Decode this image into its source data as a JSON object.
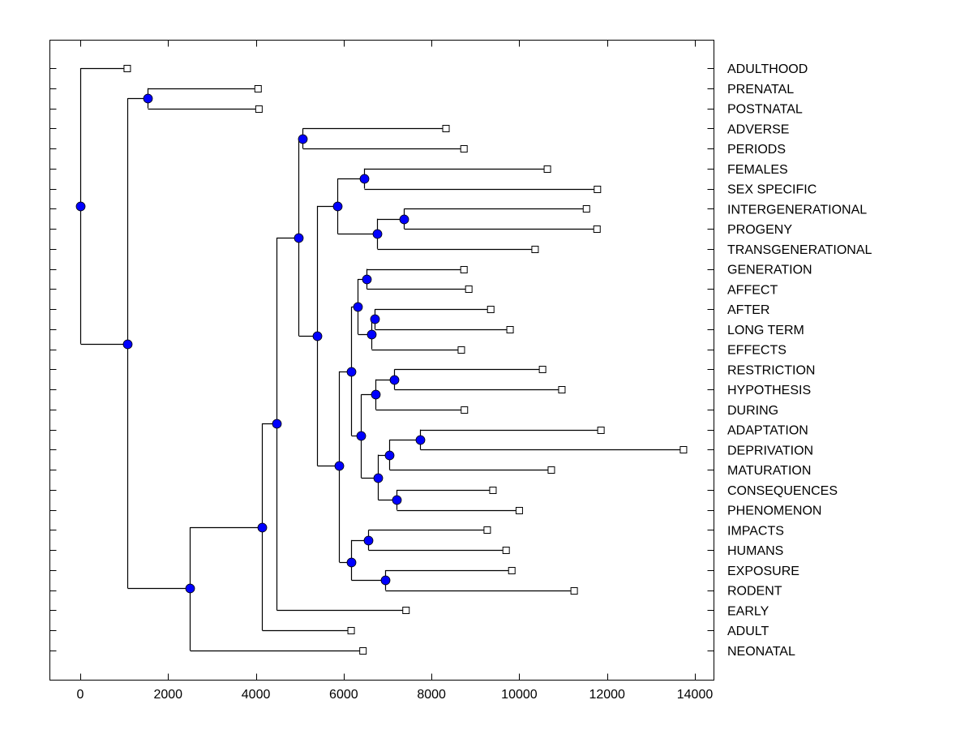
{
  "chart_data": {
    "type": "dendrogram",
    "title": "",
    "xlabel": "",
    "ylabel": "",
    "xlim": [
      -700,
      14400
    ],
    "x_ticks": [
      0,
      2000,
      4000,
      6000,
      8000,
      10000,
      12000,
      14000
    ],
    "x_tick_labels": [
      "0",
      "2000",
      "4000",
      "6000",
      "8000",
      "10000",
      "12000",
      "14000"
    ],
    "grid": false,
    "leaf_label_position": "right",
    "colors": {
      "node_fill": "#0000ff",
      "leaf_fill": "#ffffff",
      "line": "#000000"
    },
    "leaves": [
      {
        "id": "L0",
        "label": "ADULTHOOD",
        "value": 1070
      },
      {
        "id": "L1",
        "label": "PRENATAL",
        "value": 4050
      },
      {
        "id": "L2",
        "label": "POSTNATAL",
        "value": 4070
      },
      {
        "id": "L3",
        "label": "ADVERSE",
        "value": 8330
      },
      {
        "id": "L4",
        "label": "PERIODS",
        "value": 8740
      },
      {
        "id": "L5",
        "label": "FEMALES",
        "value": 10640
      },
      {
        "id": "L6",
        "label": "SEX SPECIFIC",
        "value": 11780
      },
      {
        "id": "L7",
        "label": "INTERGENERATIONAL",
        "value": 11530
      },
      {
        "id": "L8",
        "label": "PROGENY",
        "value": 11770
      },
      {
        "id": "L9",
        "label": "TRANSGENERATIONAL",
        "value": 10360
      },
      {
        "id": "L10",
        "label": "GENERATION",
        "value": 8740
      },
      {
        "id": "L11",
        "label": "AFFECT",
        "value": 8850
      },
      {
        "id": "L12",
        "label": "AFTER",
        "value": 9350
      },
      {
        "id": "L13",
        "label": "LONG TERM",
        "value": 9790
      },
      {
        "id": "L14",
        "label": "EFFECTS",
        "value": 8680
      },
      {
        "id": "L15",
        "label": "RESTRICTION",
        "value": 10530
      },
      {
        "id": "L16",
        "label": "HYPOTHESIS",
        "value": 10970
      },
      {
        "id": "L17",
        "label": "DURING",
        "value": 8750
      },
      {
        "id": "L18",
        "label": "ADAPTATION",
        "value": 11860
      },
      {
        "id": "L19",
        "label": "DEPRIVATION",
        "value": 13740
      },
      {
        "id": "L20",
        "label": "MATURATION",
        "value": 10730
      },
      {
        "id": "L21",
        "label": "CONSEQUENCES",
        "value": 9400
      },
      {
        "id": "L22",
        "label": "PHENOMENON",
        "value": 10000
      },
      {
        "id": "L23",
        "label": "IMPACTS",
        "value": 9270
      },
      {
        "id": "L24",
        "label": "HUMANS",
        "value": 9700
      },
      {
        "id": "L25",
        "label": "EXPOSURE",
        "value": 9830
      },
      {
        "id": "L26",
        "label": "RODENT",
        "value": 11250
      },
      {
        "id": "L27",
        "label": "EARLY",
        "value": 7420
      },
      {
        "id": "L28",
        "label": "ADULT",
        "value": 6170
      },
      {
        "id": "L29",
        "label": "NEONATAL",
        "value": 6440
      }
    ],
    "nodes": [
      {
        "id": "root",
        "value": 0,
        "row": 6.87,
        "children": [
          "L0",
          "N1"
        ]
      },
      {
        "id": "N1",
        "value": 1070,
        "row": 13.73,
        "children": [
          "N2",
          "N3"
        ]
      },
      {
        "id": "N2",
        "value": 1530,
        "row": 1.5,
        "children": [
          "L1",
          "L2"
        ]
      },
      {
        "id": "N3",
        "value": 2490,
        "row": 25.9,
        "children": [
          "N4",
          "L29"
        ]
      },
      {
        "id": "N4",
        "value": 4140,
        "row": 22.86,
        "children": [
          "N5",
          "L28"
        ]
      },
      {
        "id": "N5",
        "value": 4470,
        "row": 17.69,
        "children": [
          "N6",
          "L27"
        ]
      },
      {
        "id": "N6",
        "value": 4970,
        "row": 8.44,
        "children": [
          "N7",
          "N8"
        ]
      },
      {
        "id": "N7",
        "value": 5060,
        "row": 3.5,
        "children": [
          "L3",
          "L4"
        ]
      },
      {
        "id": "N8",
        "value": 5390,
        "row": 13.33,
        "children": [
          "N9",
          "N13"
        ]
      },
      {
        "id": "N9",
        "value": 5850,
        "row": 6.86,
        "children": [
          "N10",
          "N11"
        ]
      },
      {
        "id": "N10",
        "value": 6460,
        "row": 5.5,
        "children": [
          "L5",
          "L6"
        ]
      },
      {
        "id": "N11",
        "value": 6760,
        "row": 8.25,
        "children": [
          "N12",
          "L9"
        ]
      },
      {
        "id": "N12",
        "value": 7370,
        "row": 7.5,
        "children": [
          "L7",
          "L8"
        ]
      },
      {
        "id": "N13",
        "value": 5890,
        "row": 19.8,
        "children": [
          "N14",
          "N25"
        ]
      },
      {
        "id": "N14",
        "value": 6170,
        "row": 15.1,
        "children": [
          "N15",
          "N19"
        ]
      },
      {
        "id": "N15",
        "value": 6320,
        "row": 11.88,
        "children": [
          "N16",
          "N17"
        ]
      },
      {
        "id": "N16",
        "value": 6520,
        "row": 10.5,
        "children": [
          "L10",
          "L11"
        ]
      },
      {
        "id": "N17",
        "value": 6630,
        "row": 13.25,
        "children": [
          "N18",
          "L14"
        ]
      },
      {
        "id": "N18",
        "value": 6700,
        "row": 12.5,
        "children": [
          "L12",
          "L13"
        ]
      },
      {
        "id": "N19",
        "value": 6390,
        "row": 18.3,
        "children": [
          "N20",
          "N22"
        ]
      },
      {
        "id": "N20",
        "value": 6720,
        "row": 16.25,
        "children": [
          "N21",
          "L17"
        ]
      },
      {
        "id": "N21",
        "value": 7150,
        "row": 15.5,
        "children": [
          "L15",
          "L16"
        ]
      },
      {
        "id": "N22",
        "value": 6780,
        "row": 20.4,
        "children": [
          "N23",
          "N24"
        ]
      },
      {
        "id": "N23",
        "value": 7040,
        "row": 19.25,
        "children": [
          "N26",
          "L20"
        ]
      },
      {
        "id": "N26",
        "value": 7740,
        "row": 18.5,
        "children": [
          "L18",
          "L19"
        ]
      },
      {
        "id": "N24",
        "value": 7200,
        "row": 21.5,
        "children": [
          "L21",
          "L22"
        ]
      },
      {
        "id": "N25",
        "value": 6170,
        "row": 24.6,
        "children": [
          "N27",
          "N28"
        ]
      },
      {
        "id": "N27",
        "value": 6560,
        "row": 23.5,
        "children": [
          "L23",
          "L24"
        ]
      },
      {
        "id": "N28",
        "value": 6950,
        "row": 25.5,
        "children": [
          "L25",
          "L26"
        ]
      }
    ]
  }
}
